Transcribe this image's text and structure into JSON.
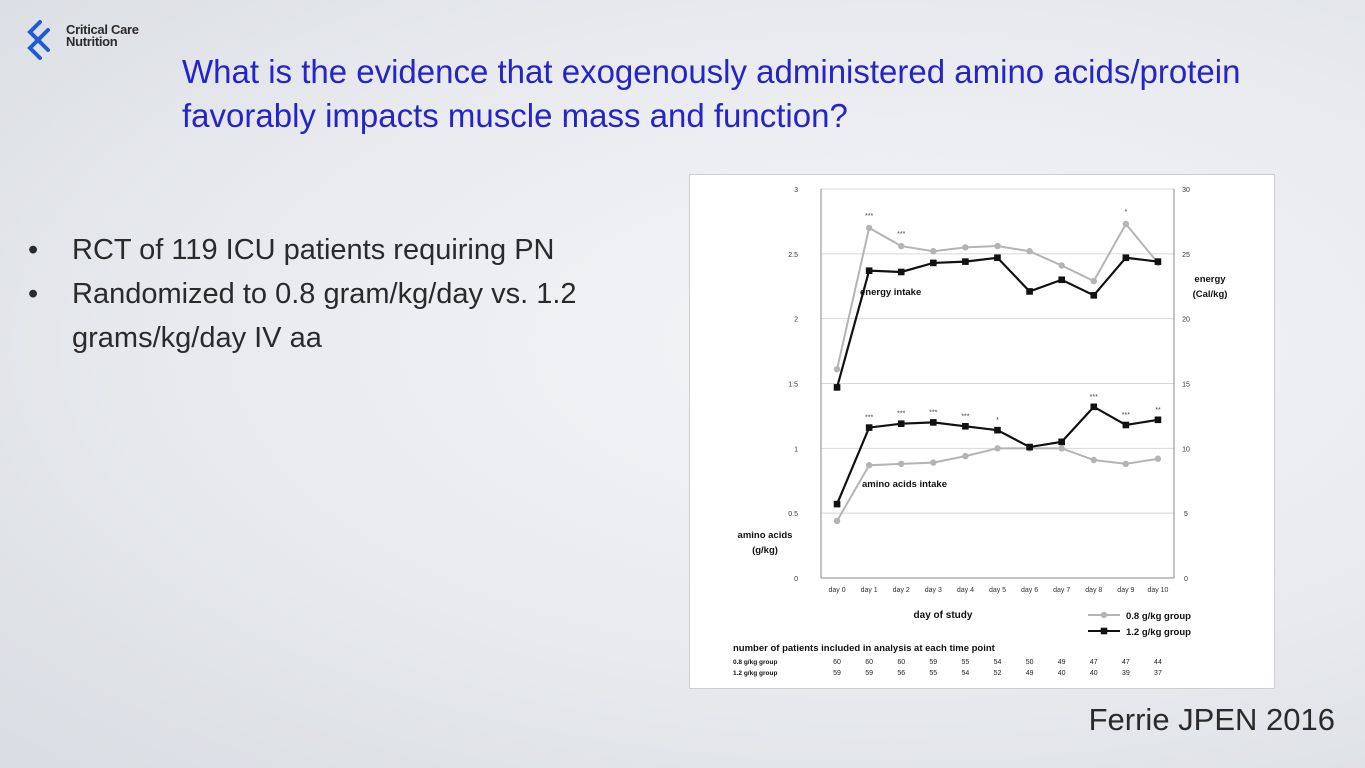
{
  "logo": {
    "line1": "Critical Care",
    "line2": "Nutrition",
    "color": "#1f5bd6"
  },
  "slide": {
    "title": "What is the evidence that exogenously administered amino acids/protein favorably impacts muscle mass and function?",
    "bullets": [
      "RCT of 119 ICU patients requiring PN",
      "Randomized to 0.8 gram/kg/day vs. 1.2 grams/kg/day IV aa"
    ],
    "bullet_char": "•",
    "citation": "Ferrie JPEN 2016"
  },
  "colors": {
    "title": "#2424c8",
    "series_08": "#b4b4b4",
    "series_12": "#111111"
  },
  "chart_data": {
    "type": "line",
    "categories": [
      "day 0",
      "day 1",
      "day 2",
      "day 3",
      "day 4",
      "day 5",
      "day 6",
      "day 7",
      "day 8",
      "day 9",
      "day 10"
    ],
    "xlabel": "day of study",
    "ylabel_left": "amino acids (g/kg)",
    "ylabel_right": "energy (Cal/kg)",
    "ylim_left": [
      0,
      3
    ],
    "ylim_right": [
      0,
      30
    ],
    "yticks_left": [
      "0",
      "0.5",
      "1",
      "1.5",
      "2",
      "2.5",
      "3"
    ],
    "yticks_right": [
      "0",
      "5",
      "10",
      "15",
      "20",
      "25",
      "30"
    ],
    "grid": true,
    "annotations": {
      "energy": "energy intake",
      "amino": "amino acids intake"
    },
    "energy_sig": [
      "",
      "***",
      "***",
      "",
      "",
      "",
      "",
      "",
      "",
      "*",
      ""
    ],
    "amino_sig": [
      "",
      "***",
      "***",
      "***",
      "***",
      "*",
      "",
      "",
      "***",
      "***",
      "**"
    ],
    "legend": [
      "0.8 g/kg group",
      "1.2 g/kg group"
    ],
    "series": [
      {
        "name": "0.8 g/kg group",
        "group": "energy",
        "axis": "right",
        "values": [
          16.1,
          27.0,
          25.6,
          25.2,
          25.5,
          25.6,
          25.2,
          24.1,
          22.9,
          27.3,
          24.3
        ]
      },
      {
        "name": "1.2 g/kg group",
        "group": "energy",
        "axis": "right",
        "values": [
          14.7,
          23.7,
          23.6,
          24.3,
          24.4,
          24.7,
          22.1,
          23.0,
          21.8,
          24.7,
          24.4
        ]
      },
      {
        "name": "0.8 g/kg group",
        "group": "amino",
        "axis": "left",
        "values": [
          0.44,
          0.87,
          0.88,
          0.89,
          0.94,
          1.0,
          1.0,
          1.0,
          0.91,
          0.88,
          0.92
        ]
      },
      {
        "name": "1.2 g/kg group",
        "group": "amino",
        "axis": "left",
        "values": [
          0.57,
          1.16,
          1.19,
          1.2,
          1.17,
          1.14,
          1.01,
          1.05,
          1.32,
          1.18,
          1.22
        ]
      }
    ],
    "patients_table": {
      "title": "number of patients included in analysis at each time point",
      "rows": [
        {
          "label": "0.8 g/kg group",
          "values": [
            "60",
            "60",
            "60",
            "59",
            "55",
            "54",
            "50",
            "49",
            "47",
            "47",
            "44"
          ]
        },
        {
          "label": "1.2 g/kg group",
          "values": [
            "59",
            "59",
            "56",
            "55",
            "54",
            "52",
            "49",
            "40",
            "40",
            "39",
            "37"
          ]
        }
      ]
    }
  }
}
